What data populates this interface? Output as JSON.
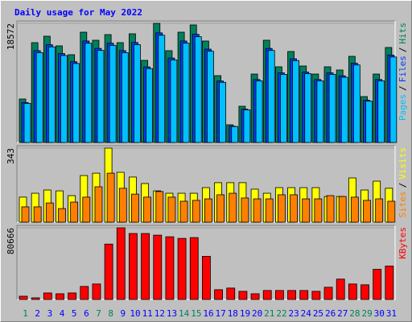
{
  "title": "Daily usage for May 2022",
  "separator": "/",
  "weekend_color": "#00805c",
  "weekend_categories": [
    "1",
    "7",
    "8",
    "14",
    "15",
    "21",
    "22",
    "28",
    "29"
  ],
  "chart_data": [
    {
      "type": "bar",
      "ylim": [
        0,
        18572
      ],
      "yticks": [
        18572
      ],
      "series": [
        {
          "name": "Hits",
          "color": "#00805c",
          "values": [
            6777,
            15562,
            16566,
            15060,
            13680,
            17194,
            15939,
            16817,
            15562,
            16943,
            12801,
            18572,
            14307,
            17194,
            18323,
            15813,
            10417,
            2761,
            5648,
            10668,
            15939,
            11797,
            14181,
            11923,
            10668,
            11797,
            11295,
            13429,
            7154,
            10668,
            14809
          ]
        },
        {
          "name": "Files",
          "color": "#0040ff",
          "values": [
            6235,
            14317,
            15241,
            13855,
            12586,
            15818,
            14664,
            15472,
            14317,
            15588,
            11777,
            17086,
            13162,
            15818,
            16857,
            14548,
            9584,
            2540,
            5196,
            9815,
            14664,
            10853,
            13047,
            10969,
            9815,
            10853,
            10391,
            12355,
            6582,
            9815,
            13624
          ]
        },
        {
          "name": "Pages",
          "color": "#00c0ff",
          "values": [
            6099,
            14006,
            14909,
            13554,
            12312,
            15475,
            14345,
            15135,
            14006,
            15249,
            11521,
            16715,
            12876,
            15475,
            16491,
            14232,
            9375,
            2485,
            5083,
            9601,
            14345,
            10617,
            12763,
            10731,
            9601,
            10617,
            10166,
            12086,
            6439,
            9601,
            13328
          ]
        }
      ]
    },
    {
      "type": "bar",
      "ylim": [
        0,
        343
      ],
      "yticks": [
        343
      ],
      "series": [
        {
          "name": "Visits",
          "color": "#ffff00",
          "values": [
            116,
            134,
            149,
            145,
            123,
            216,
            227,
            343,
            231,
            209,
            179,
            145,
            134,
            134,
            134,
            160,
            183,
            183,
            183,
            153,
            134,
            160,
            160,
            160,
            160,
            119,
            119,
            205,
            149,
            190,
            157
          ]
        },
        {
          "name": "Sites",
          "color": "#ff8000",
          "values": [
            71,
            71,
            89,
            63,
            93,
            116,
            164,
            227,
            157,
            130,
            116,
            142,
            116,
            97,
            101,
            108,
            127,
            134,
            112,
            108,
            108,
            127,
            127,
            108,
            108,
            123,
            119,
            116,
            101,
            108,
            97
          ]
        }
      ]
    },
    {
      "type": "bar",
      "ylim": [
        0,
        80666
      ],
      "yticks": [
        80666
      ],
      "categories": [
        "1",
        "2",
        "3",
        "4",
        "5",
        "6",
        "7",
        "8",
        "9",
        "10",
        "11",
        "12",
        "13",
        "14",
        "15",
        "16",
        "17",
        "18",
        "19",
        "20",
        "21",
        "22",
        "23",
        "24",
        "25",
        "26",
        "27",
        "28",
        "29",
        "30",
        "31"
      ],
      "series": [
        {
          "name": "KBytes",
          "color": "#ff0000",
          "values": [
            3667,
            1833,
            7333,
            6417,
            7333,
            14667,
            17417,
            62333,
            80666,
            74250,
            74250,
            72417,
            70583,
            68750,
            69667,
            48583,
            11000,
            12833,
            9167,
            6417,
            10083,
            10083,
            10083,
            10083,
            9167,
            13750,
            22917,
            17417,
            16500,
            33917,
            37583
          ]
        }
      ]
    }
  ]
}
